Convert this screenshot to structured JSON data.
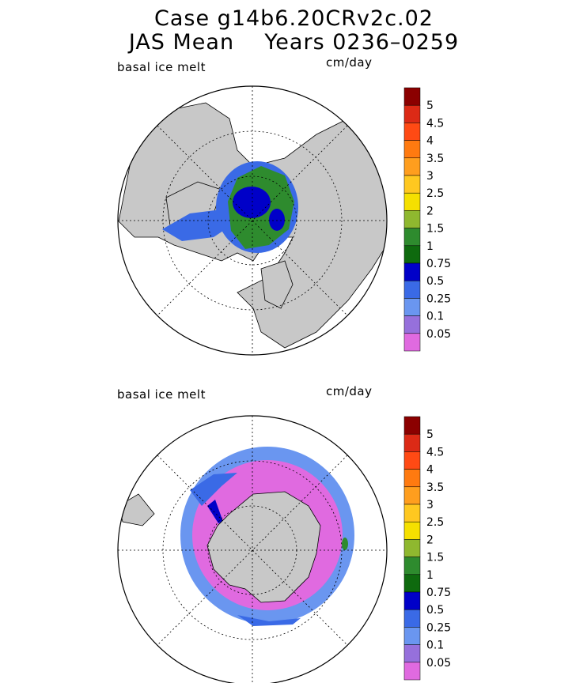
{
  "header": {
    "title_line1": "Case g14b6.20CRv2c.02",
    "title_line2": "JAS Mean    Years 0236–0259"
  },
  "colors": {
    "land": "#c8c8c8",
    "background": "#ffffff",
    "levels": [
      "#8b0000",
      "#dc2a16",
      "#ff4a14",
      "#ff7a10",
      "#ff9e1e",
      "#ffc820",
      "#f5e000",
      "#8fb82f",
      "#2e8b2e",
      "#0e6a0e",
      "#0000c8",
      "#3a6ae6",
      "#6a96f0",
      "#9670dc",
      "#e06ae0"
    ]
  },
  "chart_data": [
    {
      "type": "heatmap",
      "projection": "north-polar-stereographic",
      "variable_label": "basal ice melt",
      "units": "cm/day",
      "colorbar_ticks": [
        "5",
        "4.5",
        "4",
        "3.5",
        "3",
        "2.5",
        "2",
        "1.5",
        "1",
        "0.75",
        "0.5",
        "0.25",
        "0.1",
        "0.05"
      ],
      "dominant_values": "0.5–1.5 over central Arctic, 0.25–0.75 near margins"
    },
    {
      "type": "heatmap",
      "projection": "south-polar-stereographic",
      "variable_label": "basal ice melt",
      "units": "cm/day",
      "colorbar_ticks": [
        "5",
        "4.5",
        "4",
        "3.5",
        "3",
        "2.5",
        "2",
        "1.5",
        "1",
        "0.75",
        "0.5",
        "0.25",
        "0.1",
        "0.05"
      ],
      "dominant_values": "0.05–0.1 in inner pack, 0.25–0.75 along ice edge"
    }
  ]
}
